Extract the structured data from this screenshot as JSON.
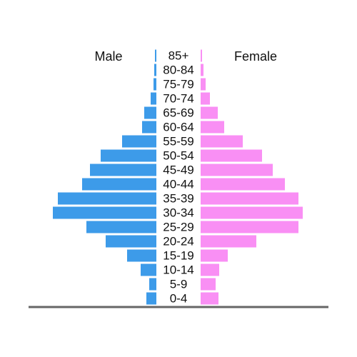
{
  "chart_data": {
    "type": "pyramid",
    "categories": [
      "0-4",
      "5-9",
      "10-14",
      "15-19",
      "20-24",
      "25-29",
      "30-34",
      "35-39",
      "40-44",
      "45-49",
      "50-54",
      "55-59",
      "60-64",
      "65-69",
      "70-74",
      "75-79",
      "80-84",
      "85+"
    ],
    "series": [
      {
        "name": "Male",
        "color": "#3d9be9",
        "values": [
          14,
          10,
          22,
          41,
          71,
          98,
          145,
          138,
          104,
          93,
          78,
          48,
          20,
          17,
          8,
          4,
          3,
          2
        ]
      },
      {
        "name": "Female",
        "color": "#f98ff4",
        "values": [
          25,
          21,
          26,
          38,
          78,
          137,
          143,
          137,
          118,
          101,
          86,
          59,
          33,
          24,
          13,
          7,
          4,
          2
        ]
      }
    ],
    "xlim": [
      0,
      150
    ]
  }
}
